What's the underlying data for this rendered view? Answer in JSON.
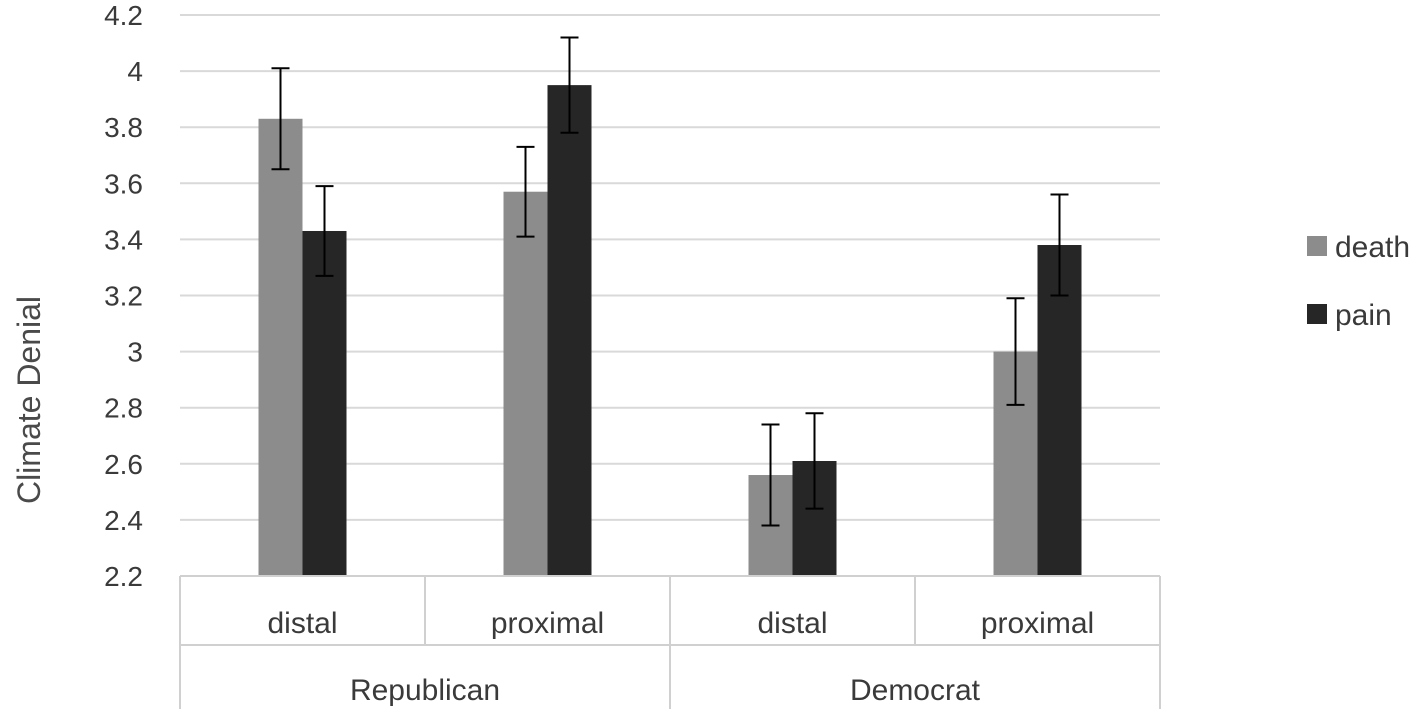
{
  "chart_data": {
    "type": "bar",
    "ylabel": "Climate Denial",
    "ylim": [
      2.2,
      4.2
    ],
    "ytick_step": 0.2,
    "ytick_labels": [
      "2.2",
      "2.4",
      "2.6",
      "2.8",
      "3",
      "3.2",
      "3.4",
      "3.6",
      "3.8",
      "4",
      "4.2"
    ],
    "grid": true,
    "legend_position": "right",
    "groups": [
      "Republican",
      "Democrat"
    ],
    "categories": [
      {
        "label": "distal",
        "group": "Republican"
      },
      {
        "label": "proximal",
        "group": "Republican"
      },
      {
        "label": "distal",
        "group": "Democrat"
      },
      {
        "label": "proximal",
        "group": "Democrat"
      }
    ],
    "series": [
      {
        "name": "death",
        "color": "#8c8c8c",
        "values": [
          3.83,
          3.57,
          2.56,
          3.0
        ],
        "error": [
          0.18,
          0.16,
          0.18,
          0.19
        ]
      },
      {
        "name": "pain",
        "color": "#262626",
        "values": [
          3.43,
          3.95,
          2.61,
          3.38
        ],
        "error": [
          0.16,
          0.17,
          0.17,
          0.18
        ]
      }
    ]
  }
}
